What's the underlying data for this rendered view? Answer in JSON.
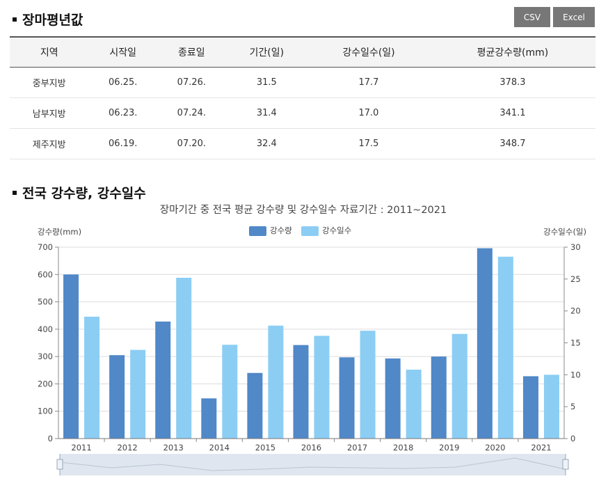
{
  "section1": {
    "title": "장마평년값"
  },
  "buttons": {
    "csv": "CSV",
    "excel": "Excel"
  },
  "table": {
    "headers": [
      "지역",
      "시작일",
      "종료일",
      "기간(일)",
      "강수일수(일)",
      "평균강수량(mm)"
    ],
    "rows": [
      [
        "중부지방",
        "06.25.",
        "07.26.",
        "31.5",
        "17.7",
        "378.3"
      ],
      [
        "남부지방",
        "06.23.",
        "07.24.",
        "31.4",
        "17.0",
        "341.1"
      ],
      [
        "제주지방",
        "06.19.",
        "07.20.",
        "32.4",
        "17.5",
        "348.7"
      ]
    ]
  },
  "section2": {
    "title": "전국 강수량, 강수일수"
  },
  "colors": {
    "precip": "#5088c8",
    "days": "#8ccdf4",
    "button": "#777777"
  },
  "chart_data": {
    "type": "bar",
    "title": "장마기간 중 전국 평균 강수량 및 강수일수 자료기간 : 2011~2021",
    "ylabel": "강수량(mm)",
    "y2label": "강수일수(일)",
    "ylim": [
      0,
      700
    ],
    "y2lim": [
      0,
      30
    ],
    "yticks": [
      0,
      100,
      200,
      300,
      400,
      500,
      600,
      700
    ],
    "y2ticks": [
      0,
      5,
      10,
      15,
      20,
      25,
      30
    ],
    "grid": true,
    "legend": "top-center",
    "categories": [
      "2011",
      "2012",
      "2013",
      "2014",
      "2015",
      "2016",
      "2017",
      "2018",
      "2019",
      "2020",
      "2021"
    ],
    "series": [
      {
        "name": "강수량",
        "axis": "left",
        "values": [
          600,
          305,
          428,
          147,
          240,
          342,
          297,
          293,
          300,
          696,
          228
        ]
      },
      {
        "name": "강수일수",
        "axis": "right",
        "values": [
          19.1,
          13.9,
          25.2,
          14.7,
          17.7,
          16.1,
          16.9,
          10.8,
          16.4,
          28.5,
          10.0
        ]
      }
    ]
  }
}
